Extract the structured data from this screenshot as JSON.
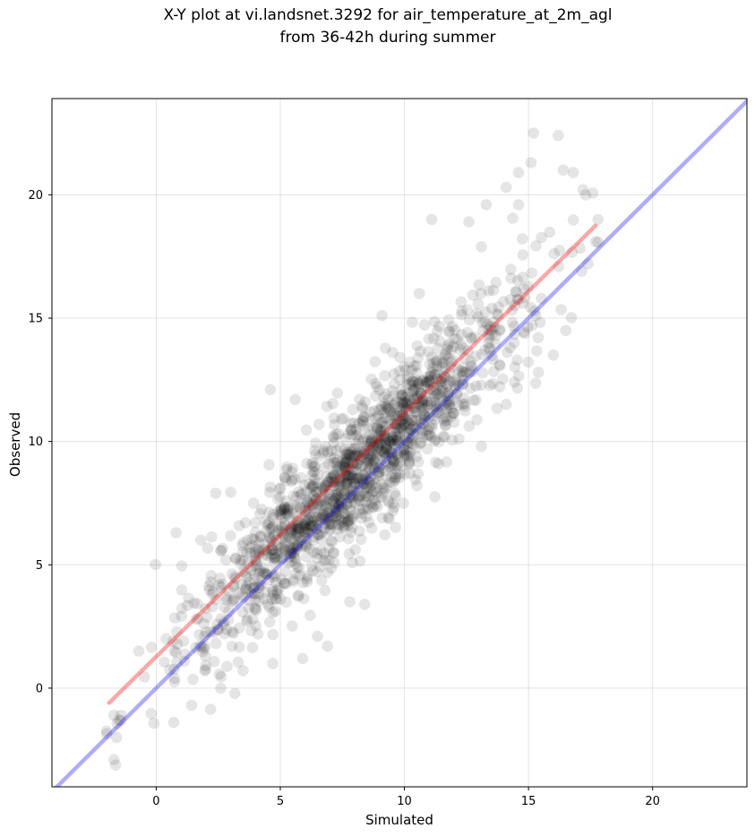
{
  "chart_data": {
    "type": "scatter",
    "title": [
      "X-Y plot at vi.landsnet.3292 for air_temperature_at_2m_agl",
      "from 36-42h during summer"
    ],
    "xlabel": "Simulated",
    "ylabel": "Observed",
    "xlim": [
      -4.2,
      23.8
    ],
    "ylim": [
      -4.0,
      23.9
    ],
    "xticks": [
      0,
      5,
      10,
      15,
      20
    ],
    "yticks": [
      0,
      5,
      10,
      15,
      20
    ],
    "grid": true,
    "series": [
      {
        "kind": "points",
        "color": "#000000",
        "opacity": 0.1,
        "generator": {
          "n": 1500,
          "x_range": [
            -2.0,
            17.8
          ],
          "x_center": 8.0,
          "x_spread": 3.3,
          "slope": 0.98,
          "intercept": 0.9,
          "noise": 1.35,
          "seed": 3292
        },
        "highlight_points": [
          [
            -1.7,
            -2.9
          ],
          [
            -1.6,
            -2.0
          ],
          [
            -1.5,
            -1.3
          ],
          [
            -0.7,
            1.5
          ],
          [
            0.4,
            2.0
          ],
          [
            0.8,
            6.3
          ],
          [
            1.8,
            6.0
          ],
          [
            2.4,
            7.9
          ],
          [
            2.6,
            0.0
          ],
          [
            3.5,
            0.7
          ],
          [
            4.7,
            1.0
          ],
          [
            5.9,
            1.2
          ],
          [
            6.5,
            2.1
          ],
          [
            6.9,
            1.7
          ],
          [
            7.8,
            3.5
          ],
          [
            8.4,
            3.4
          ],
          [
            4.6,
            12.1
          ],
          [
            5.6,
            11.7
          ],
          [
            9.1,
            15.1
          ],
          [
            10.6,
            16.0
          ],
          [
            11.1,
            19.0
          ],
          [
            12.6,
            18.9
          ],
          [
            13.3,
            19.6
          ],
          [
            14.1,
            20.3
          ],
          [
            14.6,
            20.9
          ],
          [
            14.6,
            19.6
          ],
          [
            15.1,
            21.3
          ],
          [
            15.2,
            22.5
          ],
          [
            16.2,
            22.4
          ],
          [
            16.4,
            21.0
          ],
          [
            16.8,
            20.9
          ],
          [
            17.3,
            20.0
          ],
          [
            15.4,
            12.8
          ],
          [
            16.0,
            13.5
          ],
          [
            16.5,
            14.5
          ],
          [
            17.4,
            17.2
          ],
          [
            17.7,
            18.1
          ],
          [
            14.1,
            11.5
          ],
          [
            13.1,
            9.8
          ],
          [
            12.2,
            10.1
          ]
        ]
      },
      {
        "kind": "line",
        "name": "",
        "color": "#ff0000",
        "opacity": 0.35,
        "x": [
          -1.9,
          17.7
        ],
        "y": [
          -0.6,
          18.75
        ]
      },
      {
        "kind": "line",
        "name": "",
        "color": "#0000ff",
        "opacity": 0.32,
        "x": [
          -4.2,
          23.8
        ],
        "y": [
          -4.2,
          23.8
        ]
      }
    ]
  }
}
